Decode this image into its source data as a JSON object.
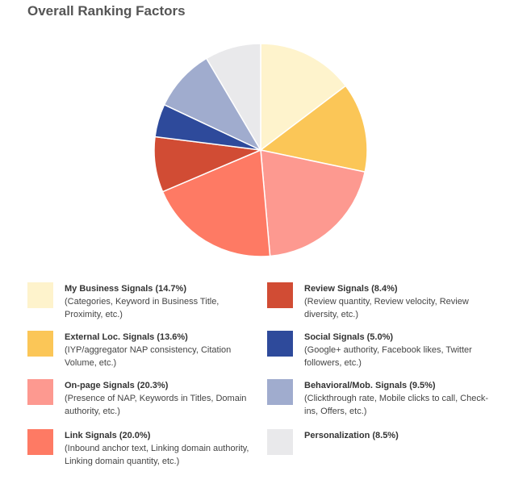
{
  "page": {
    "title": "Overall Ranking Factors"
  },
  "chart_data": {
    "type": "pie",
    "title": "Overall Ranking Factors",
    "slices": [
      {
        "name": "My Business Signals",
        "value": 14.7,
        "label": "My Business Signals (14.7%)",
        "desc": "(Categories, Keyword in Business Title, Proximity, etc.)",
        "color": "#fef3cc"
      },
      {
        "name": "External Loc. Signals",
        "value": 13.6,
        "label": "External Loc. Signals (13.6%)",
        "desc": "(IYP/aggregator NAP consistency, Citation Volume, etc.)",
        "color": "#fbc657"
      },
      {
        "name": "On-page Signals",
        "value": 20.3,
        "label": "On-page Signals (20.3%)",
        "desc": "(Presence of NAP, Keywords in Titles, Domain authority, etc.)",
        "color": "#fd9990"
      },
      {
        "name": "Link Signals",
        "value": 20.0,
        "label": "Link Signals (20.0%)",
        "desc": "(Inbound anchor text, Linking domain authority, Linking domain quantity, etc.)",
        "color": "#fe7a64"
      },
      {
        "name": "Review Signals",
        "value": 8.4,
        "label": "Review Signals (8.4%)",
        "desc": "(Review quantity, Review velocity, Review diversity, etc.)",
        "color": "#d14c34"
      },
      {
        "name": "Social Signals",
        "value": 5.0,
        "label": "Social Signals (5.0%)",
        "desc": "(Google+ authority, Facebook likes, Twitter followers, etc.)",
        "color": "#2e4a9b"
      },
      {
        "name": "Behavioral/Mob. Signals",
        "value": 9.5,
        "label": "Behavioral/Mob. Signals (9.5%)",
        "desc": "(Clickthrough rate, Mobile clicks to call, Check-ins, Offers, etc.)",
        "color": "#a0acce"
      },
      {
        "name": "Personalization",
        "value": 8.5,
        "label": "Personalization (8.5%)",
        "desc": "",
        "color": "#e9e9eb"
      }
    ]
  }
}
